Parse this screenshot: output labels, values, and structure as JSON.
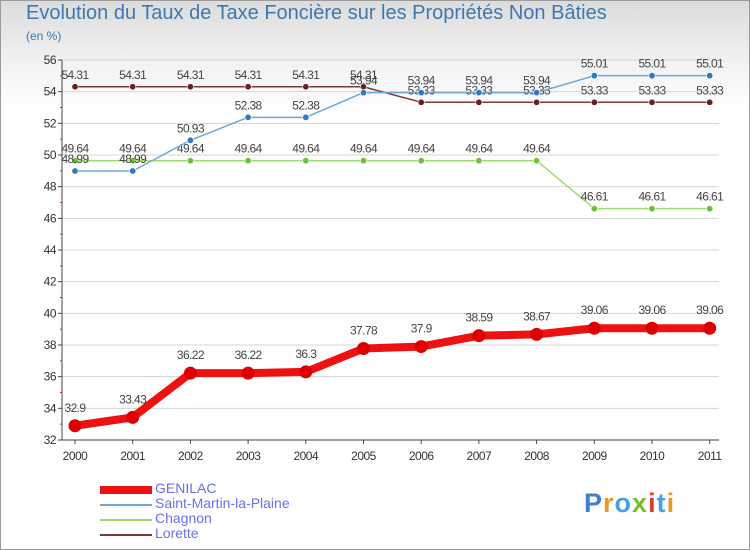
{
  "title": "Evolution du Taux de Taxe Foncière sur les Propriétés Non Bâties",
  "subtitle": "(en %)",
  "colors": {
    "title": "#3d78b0",
    "grid": "#d6d6d6",
    "axis": "#444444",
    "legend_text": "#6a6ff2"
  },
  "logo": {
    "letters": [
      {
        "char": "P",
        "color": "#3e7fd0"
      },
      {
        "char": "r",
        "color": "#e79b1e"
      },
      {
        "char": "o",
        "color": "#4aa0e0"
      },
      {
        "char": "x",
        "color": "#7cbc2c"
      },
      {
        "char": "i",
        "color": "#e13a2a"
      },
      {
        "char": "t",
        "color": "#4aa0e0"
      },
      {
        "char": "i",
        "color": "#e79b1e"
      }
    ]
  },
  "chart_data": {
    "type": "line",
    "title": "Evolution du Taux de Taxe Foncière sur les Propriétés Non Bâties",
    "ylabel": "(en %)",
    "xlabel": "",
    "grid": true,
    "legend_position": "bottom-left",
    "ylim": [
      32,
      56
    ],
    "yticks": [
      32,
      34,
      36,
      38,
      40,
      42,
      44,
      46,
      48,
      50,
      52,
      54,
      56
    ],
    "categories": [
      "2000",
      "2001",
      "2002",
      "2003",
      "2004",
      "2005",
      "2006",
      "2007",
      "2008",
      "2009",
      "2010",
      "2011"
    ],
    "series": [
      {
        "name": "GENILAC",
        "color": "#ee1111",
        "marker_color": "#dd0000",
        "values": [
          32.9,
          33.43,
          36.22,
          36.22,
          36.3,
          37.78,
          37.9,
          38.59,
          38.67,
          39.06,
          39.06,
          39.06
        ],
        "labels": [
          "32.9",
          "33.43",
          "36.22",
          "36.22",
          "36.3",
          "37.78",
          "37.9",
          "38.59",
          "38.67",
          "39.06",
          "39.06",
          "39.06"
        ]
      },
      {
        "name": "Saint-Martin-la-Plaine",
        "color": "#6fa8d6",
        "marker_color": "#2e78c8",
        "values": [
          48.99,
          48.99,
          50.93,
          52.38,
          52.38,
          53.94,
          53.94,
          53.94,
          53.94,
          55.01,
          55.01,
          55.01
        ],
        "labels": [
          "48.99",
          "48.99",
          "50.93",
          "52.38",
          "52.38",
          "53.94",
          "53.94",
          "53.94",
          "53.94",
          "55.01",
          "55.01",
          "55.01"
        ]
      },
      {
        "name": "Chagnon",
        "color": "#9fdc70",
        "marker_color": "#6cc23a",
        "values": [
          49.64,
          49.64,
          49.64,
          49.64,
          49.64,
          49.64,
          49.64,
          49.64,
          49.64,
          46.61,
          46.61,
          46.61
        ],
        "labels": [
          "49.64",
          "49.64",
          "49.64",
          "49.64",
          "49.64",
          "49.64",
          "49.64",
          "49.64",
          "49.64",
          "46.61",
          "46.61",
          "46.61"
        ]
      },
      {
        "name": "Lorette",
        "color": "#7a3a3a",
        "marker_color": "#6a1f1f",
        "values": [
          54.31,
          54.31,
          54.31,
          54.31,
          54.31,
          54.31,
          53.33,
          53.33,
          53.33,
          53.33,
          53.33,
          53.33
        ],
        "labels": [
          "54.31",
          "54.31",
          "54.31",
          "54.31",
          "54.31",
          "54.31",
          "53.33",
          "53.33",
          "53.33",
          "53.33",
          "53.33",
          "53.33"
        ]
      }
    ]
  }
}
